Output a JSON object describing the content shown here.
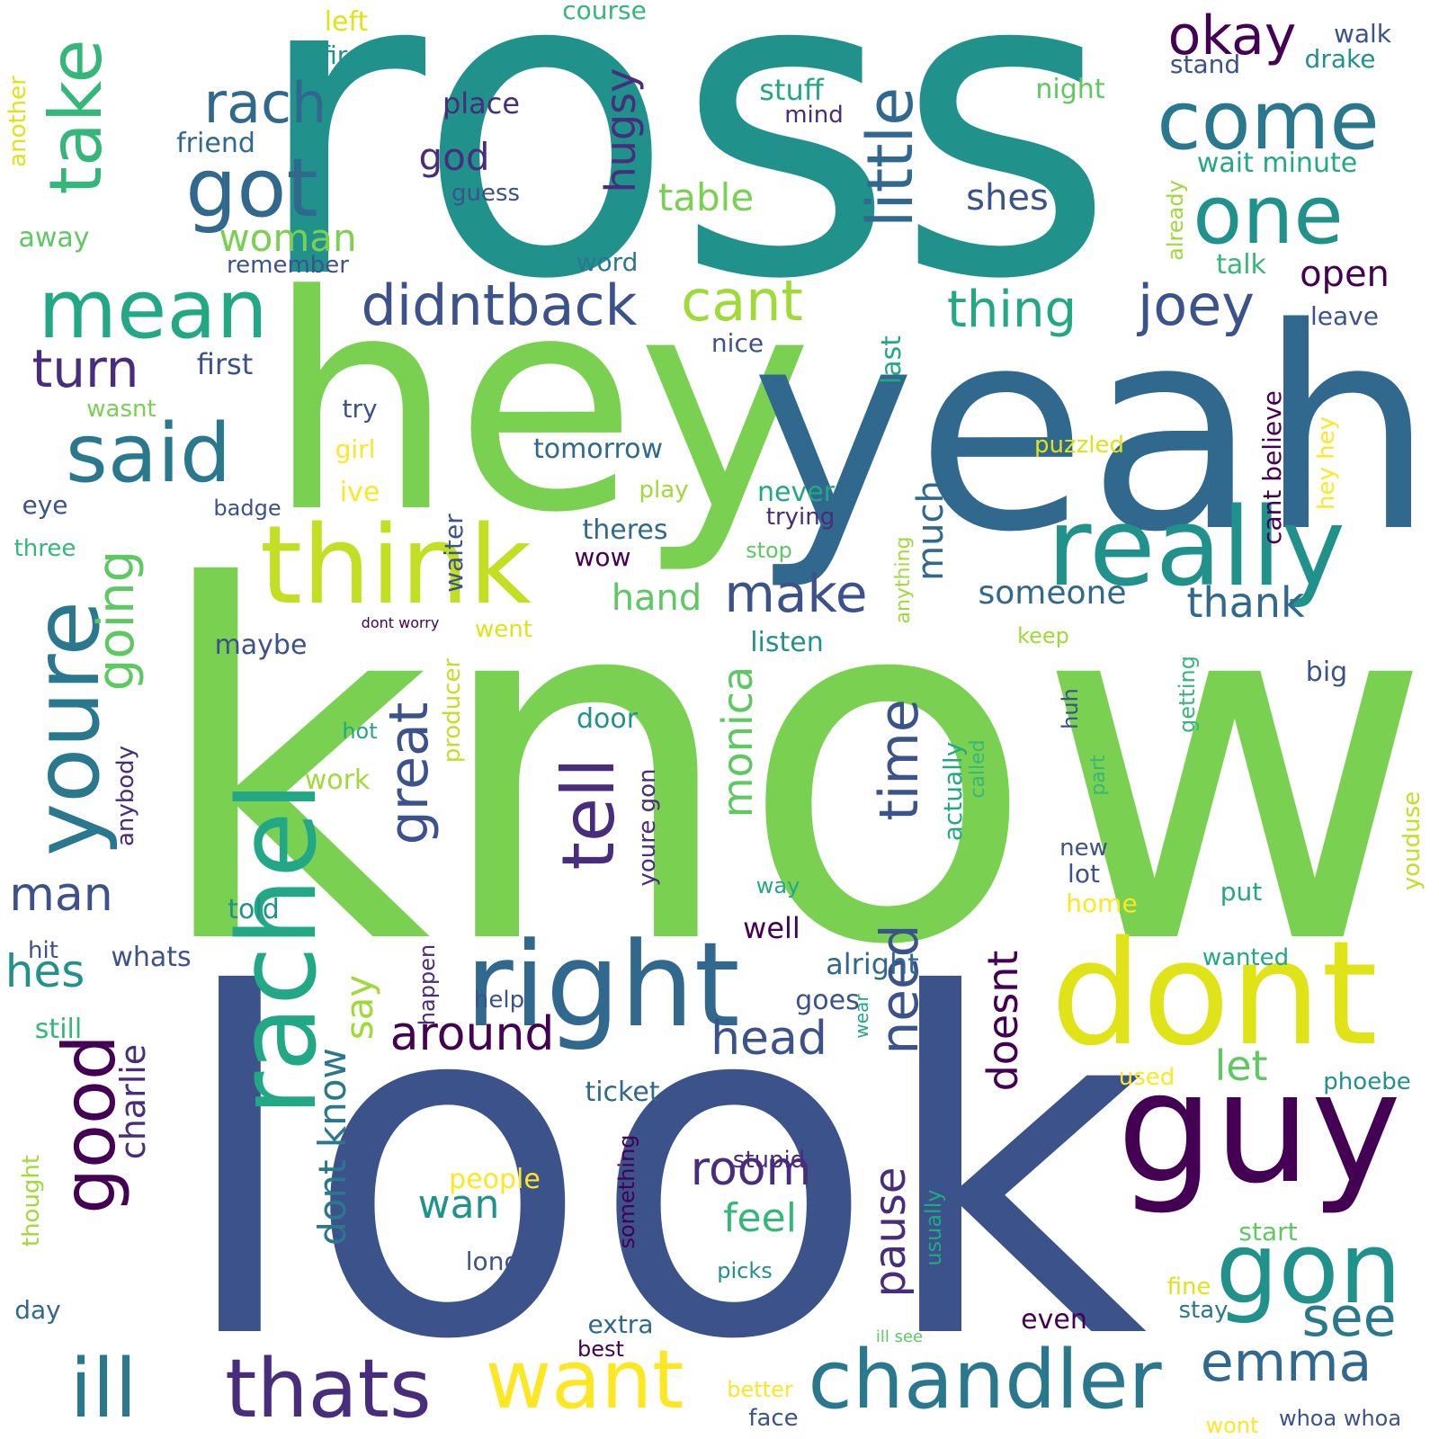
{
  "words": [
    {
      "text": "ross",
      "color": "#21918c"
    },
    {
      "text": "know",
      "color": "#7ad151"
    },
    {
      "text": "look",
      "color": "#3b528b"
    },
    {
      "text": "hey",
      "color": "#7ad151"
    },
    {
      "text": "yeah",
      "color": "#31688e"
    },
    {
      "text": "dont",
      "color": "#dfe318"
    },
    {
      "text": "guy",
      "color": "#440154"
    },
    {
      "text": "think",
      "color": "#c2df23"
    },
    {
      "text": "really",
      "color": "#21918c"
    },
    {
      "text": "right",
      "color": "#31688e"
    },
    {
      "text": "rachel",
      "color": "#22a884"
    },
    {
      "text": "gon",
      "color": "#21918c"
    },
    {
      "text": "chandler",
      "color": "#2a788e"
    },
    {
      "text": "youre",
      "color": "#2a788e"
    },
    {
      "text": "thats",
      "color": "#472d7b"
    },
    {
      "text": "ill",
      "color": "#2a788e"
    },
    {
      "text": "want",
      "color": "#fde725"
    },
    {
      "text": "come",
      "color": "#2a788e"
    },
    {
      "text": "one",
      "color": "#21918c"
    },
    {
      "text": "got",
      "color": "#31688e"
    },
    {
      "text": "mean",
      "color": "#22a884"
    },
    {
      "text": "said",
      "color": "#2a788e"
    },
    {
      "text": "take",
      "color": "#35b779"
    },
    {
      "text": "little",
      "color": "#31688e"
    },
    {
      "text": "tell",
      "color": "#472d7b"
    },
    {
      "text": "good",
      "color": "#440154"
    },
    {
      "text": "emma",
      "color": "#31688e"
    },
    {
      "text": "didntback",
      "color": "#3b528b"
    },
    {
      "text": "great",
      "color": "#3b528b"
    },
    {
      "text": "see",
      "color": "#2a788e"
    },
    {
      "text": "cant",
      "color": "#a0da39"
    },
    {
      "text": "joey",
      "color": "#3b528b"
    },
    {
      "text": "rach",
      "color": "#31688e"
    },
    {
      "text": "okay",
      "color": "#440154"
    },
    {
      "text": "time",
      "color": "#3b528b"
    },
    {
      "text": "need",
      "color": "#3b528b"
    },
    {
      "text": "make",
      "color": "#3b528b"
    },
    {
      "text": "thing",
      "color": "#22a884"
    },
    {
      "text": "turn",
      "color": "#472d7b"
    },
    {
      "text": "going",
      "color": "#5ec962"
    },
    {
      "text": "monica",
      "color": "#5ec962"
    },
    {
      "text": "room",
      "color": "#472d7b"
    },
    {
      "text": "around",
      "color": "#440154"
    },
    {
      "text": "head",
      "color": "#3b528b"
    },
    {
      "text": "man",
      "color": "#3b528b"
    },
    {
      "text": "hes",
      "color": "#21918c"
    },
    {
      "text": "doesnt",
      "color": "#440154"
    },
    {
      "text": "thank",
      "color": "#31688e"
    },
    {
      "text": "pause",
      "color": "#472d7b"
    },
    {
      "text": "hugsy",
      "color": "#472d7b"
    },
    {
      "text": "dont know",
      "color": "#2a788e"
    },
    {
      "text": "let",
      "color": "#5ec962"
    },
    {
      "text": "say",
      "color": "#a0da39"
    },
    {
      "text": "much",
      "color": "#31688e"
    },
    {
      "text": "feel",
      "color": "#35b779"
    },
    {
      "text": "wan",
      "color": "#21918c"
    },
    {
      "text": "charlie",
      "color": "#472d7b"
    },
    {
      "text": "table",
      "color": "#7ad151"
    },
    {
      "text": "woman",
      "color": "#7ad151"
    },
    {
      "text": "shes",
      "color": "#3b528b"
    },
    {
      "text": "open",
      "color": "#440154"
    },
    {
      "text": "someone",
      "color": "#31688e"
    },
    {
      "text": "hand",
      "color": "#5ec962"
    },
    {
      "text": "god",
      "color": "#472d7b"
    },
    {
      "text": "stuff",
      "color": "#22a884"
    },
    {
      "text": "place",
      "color": "#472d7b"
    },
    {
      "text": "friend",
      "color": "#31688e"
    },
    {
      "text": "left",
      "color": "#dfe318"
    },
    {
      "text": "fire",
      "color": "#21918c"
    },
    {
      "text": "course",
      "color": "#35b779"
    },
    {
      "text": "walk",
      "color": "#3b528b"
    },
    {
      "text": "drake",
      "color": "#21918c"
    },
    {
      "text": "stand",
      "color": "#3b528b"
    },
    {
      "text": "mind",
      "color": "#472d7b"
    },
    {
      "text": "night",
      "color": "#5ec962"
    },
    {
      "text": "wait minute",
      "color": "#22a884"
    },
    {
      "text": "guess",
      "color": "#3b528b"
    },
    {
      "text": "another",
      "color": "#dfe318"
    },
    {
      "text": "away",
      "color": "#5ec962"
    },
    {
      "text": "remember",
      "color": "#3b528b"
    },
    {
      "text": "word",
      "color": "#2a788e"
    },
    {
      "text": "already",
      "color": "#a0da39"
    },
    {
      "text": "talk",
      "color": "#35b779"
    },
    {
      "text": "leave",
      "color": "#3b528b"
    },
    {
      "text": "nice",
      "color": "#3b528b"
    },
    {
      "text": "last",
      "color": "#22a884"
    },
    {
      "text": "first",
      "color": "#3b528b"
    },
    {
      "text": "wasnt",
      "color": "#7ad151"
    },
    {
      "text": "try",
      "color": "#3b528b"
    },
    {
      "text": "girl",
      "color": "#fde725"
    },
    {
      "text": "tomorrow",
      "color": "#31688e"
    },
    {
      "text": "puzzled",
      "color": "#dfe318"
    },
    {
      "text": "cant believe",
      "color": "#440154"
    },
    {
      "text": "hey hey",
      "color": "#fde725"
    },
    {
      "text": "ive",
      "color": "#fde725"
    },
    {
      "text": "eye",
      "color": "#3b528b"
    },
    {
      "text": "badge",
      "color": "#3b528b"
    },
    {
      "text": "waiter",
      "color": "#3b528b"
    },
    {
      "text": "play",
      "color": "#a0da39"
    },
    {
      "text": "never",
      "color": "#22a884"
    },
    {
      "text": "trying",
      "color": "#472d7b"
    },
    {
      "text": "theres",
      "color": "#31688e"
    },
    {
      "text": "three",
      "color": "#35b779"
    },
    {
      "text": "stop",
      "color": "#5ec962"
    },
    {
      "text": "wow",
      "color": "#440154"
    },
    {
      "text": "dont worry",
      "color": "#440154"
    },
    {
      "text": "anything",
      "color": "#a0da39"
    },
    {
      "text": "went",
      "color": "#dfe318"
    },
    {
      "text": "keep",
      "color": "#a0da39"
    },
    {
      "text": "maybe",
      "color": "#3b528b"
    },
    {
      "text": "listen",
      "color": "#21918c"
    },
    {
      "text": "producer",
      "color": "#c2df23"
    },
    {
      "text": "getting",
      "color": "#35b779"
    },
    {
      "text": "big",
      "color": "#3b528b"
    },
    {
      "text": "door",
      "color": "#21918c"
    },
    {
      "text": "hot",
      "color": "#22a884"
    },
    {
      "text": "huh",
      "color": "#3b528b"
    },
    {
      "text": "anybody",
      "color": "#472d7b"
    },
    {
      "text": "youre gon",
      "color": "#472d7b"
    },
    {
      "text": "actually",
      "color": "#22a884"
    },
    {
      "text": "called",
      "color": "#35b779"
    },
    {
      "text": "work",
      "color": "#a0da39"
    },
    {
      "text": "part",
      "color": "#35b779"
    },
    {
      "text": "youduse",
      "color": "#c2df23"
    },
    {
      "text": "new",
      "color": "#3b528b"
    },
    {
      "text": "way",
      "color": "#22a884"
    },
    {
      "text": "lot",
      "color": "#3b528b"
    },
    {
      "text": "told",
      "color": "#21918c"
    },
    {
      "text": "put",
      "color": "#22a884"
    },
    {
      "text": "home",
      "color": "#fde725"
    },
    {
      "text": "well",
      "color": "#440154"
    },
    {
      "text": "whats",
      "color": "#3b528b"
    },
    {
      "text": "alright",
      "color": "#31688e"
    },
    {
      "text": "wanted",
      "color": "#22a884"
    },
    {
      "text": "hit",
      "color": "#3b528b"
    },
    {
      "text": "happen",
      "color": "#472d7b"
    },
    {
      "text": "help",
      "color": "#3b528b"
    },
    {
      "text": "goes",
      "color": "#3b528b"
    },
    {
      "text": "wear",
      "color": "#22a884"
    },
    {
      "text": "still",
      "color": "#35b779"
    },
    {
      "text": "used",
      "color": "#fde725"
    },
    {
      "text": "phoebe",
      "color": "#21918c"
    },
    {
      "text": "ticket",
      "color": "#31688e"
    },
    {
      "text": "thought",
      "color": "#a0da39"
    },
    {
      "text": "something",
      "color": "#440154"
    },
    {
      "text": "people",
      "color": "#fde725"
    },
    {
      "text": "stupid",
      "color": "#472d7b"
    },
    {
      "text": "usually",
      "color": "#22a884"
    },
    {
      "text": "start",
      "color": "#5ec962"
    },
    {
      "text": "long",
      "color": "#3b528b"
    },
    {
      "text": "picks",
      "color": "#21918c"
    },
    {
      "text": "fine",
      "color": "#dfe318"
    },
    {
      "text": "day",
      "color": "#31688e"
    },
    {
      "text": "extra",
      "color": "#31688e"
    },
    {
      "text": "ill see",
      "color": "#5ec962"
    },
    {
      "text": "stay",
      "color": "#2a788e"
    },
    {
      "text": "even",
      "color": "#440154"
    },
    {
      "text": "best",
      "color": "#440154"
    },
    {
      "text": "better",
      "color": "#fde725"
    },
    {
      "text": "face",
      "color": "#3b528b"
    },
    {
      "text": "wont",
      "color": "#fde725"
    },
    {
      "text": "whoa whoa",
      "color": "#3b528b"
    }
  ]
}
